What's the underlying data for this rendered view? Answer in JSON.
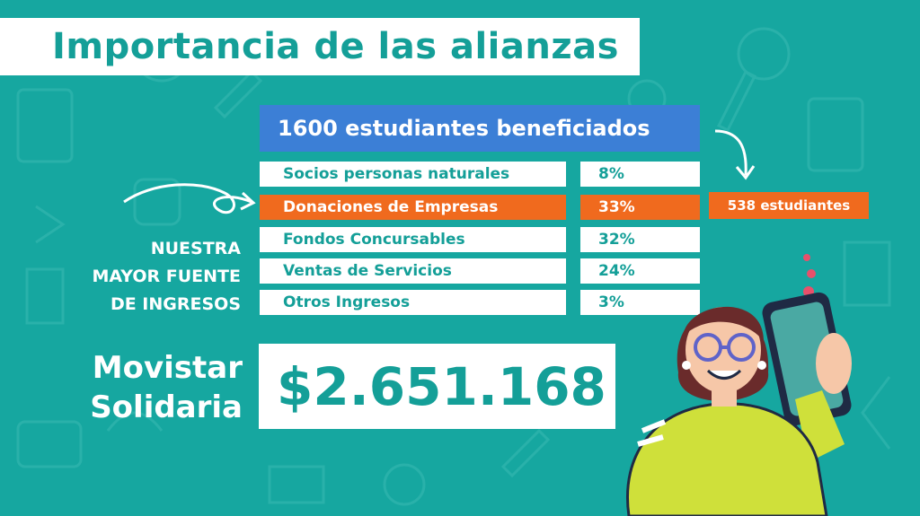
{
  "title": "Importancia de las alianzas",
  "header": "1600 estudiantes beneficiados",
  "rows": [
    {
      "label": "Socios personas naturales",
      "pct": "8%"
    },
    {
      "label": "Donaciones de Empresas",
      "pct": "33%"
    },
    {
      "label": "Fondos Concursables",
      "pct": "32%"
    },
    {
      "label": "Ventas de Servicios",
      "pct": "24%"
    },
    {
      "label": "Otros Ingresos",
      "pct": "3%"
    }
  ],
  "highlight_tag": "538 estudiantes",
  "note_lines": [
    "NUESTRA",
    "MAYOR FUENTE",
    "DE INGRESOS"
  ],
  "sponsor_lines": [
    "Movistar",
    "Solidaria"
  ],
  "amount": "$2.651.168",
  "colors": {
    "background": "#16a7a0",
    "accent": "#f06a1e",
    "header": "#3c7fd6",
    "text": "#149f98"
  },
  "icons": [
    "curved-arrow-icon",
    "curved-down-arrow-icon",
    "heart-icon",
    "smartphone-icon"
  ]
}
